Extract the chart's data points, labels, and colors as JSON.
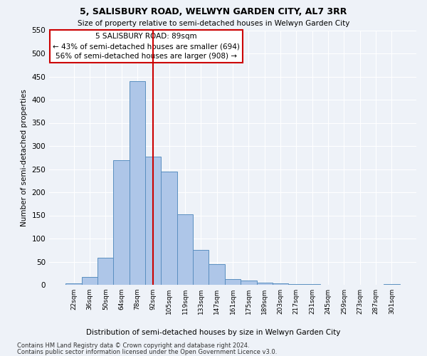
{
  "title1": "5, SALISBURY ROAD, WELWYN GARDEN CITY, AL7 3RR",
  "title2": "Size of property relative to semi-detached houses in Welwyn Garden City",
  "xlabel": "Distribution of semi-detached houses by size in Welwyn Garden City",
  "ylabel": "Number of semi-detached properties",
  "categories": [
    "22sqm",
    "36sqm",
    "50sqm",
    "64sqm",
    "78sqm",
    "92sqm",
    "105sqm",
    "119sqm",
    "133sqm",
    "147sqm",
    "161sqm",
    "175sqm",
    "189sqm",
    "203sqm",
    "217sqm",
    "231sqm",
    "245sqm",
    "259sqm",
    "273sqm",
    "287sqm",
    "301sqm"
  ],
  "values": [
    3,
    17,
    58,
    270,
    440,
    277,
    245,
    153,
    75,
    45,
    13,
    10,
    5,
    3,
    2,
    1,
    0,
    0,
    0,
    0,
    1
  ],
  "bar_color": "#aec6e8",
  "bar_edge_color": "#5a8fc0",
  "vline_x": 5.0,
  "annotation_title": "5 SALISBURY ROAD: 89sqm",
  "annotation_line1": "← 43% of semi-detached houses are smaller (694)",
  "annotation_line2": "56% of semi-detached houses are larger (908) →",
  "vline_color": "#cc0000",
  "annotation_box_edge": "#cc0000",
  "ylim": [
    0,
    550
  ],
  "yticks": [
    0,
    50,
    100,
    150,
    200,
    250,
    300,
    350,
    400,
    450,
    500,
    550
  ],
  "footnote1": "Contains HM Land Registry data © Crown copyright and database right 2024.",
  "footnote2": "Contains public sector information licensed under the Open Government Licence v3.0.",
  "bg_color": "#eef2f8",
  "grid_color": "#ffffff"
}
